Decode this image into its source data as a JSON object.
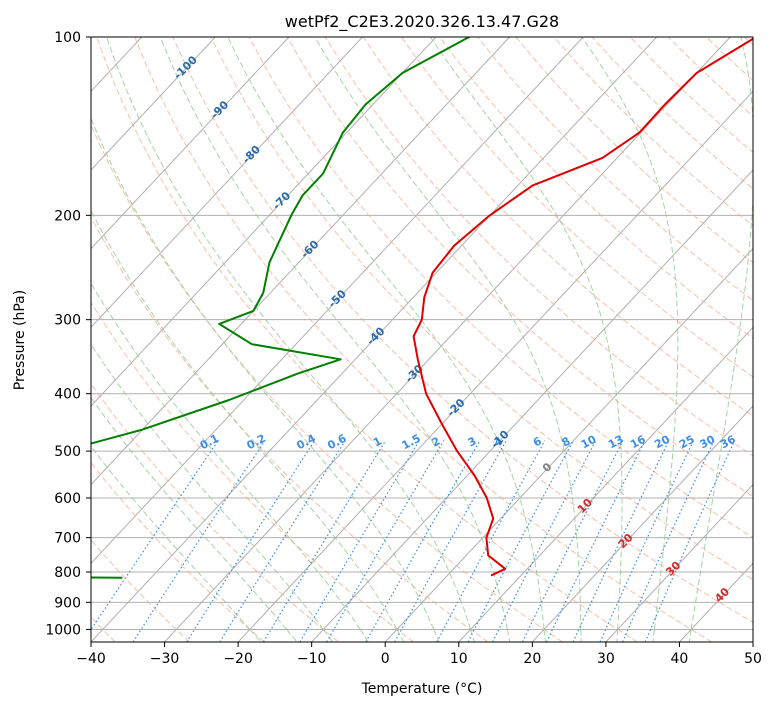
{
  "chart_data": {
    "type": "line",
    "subtype": "skew-t log-p diagram",
    "title": "wetPf2_C2E3.2020.326.13.47.G28",
    "xlabel": "Temperature (°C)",
    "ylabel": "Pressure (hPa)",
    "xlim": [
      -40,
      50
    ],
    "ylim": [
      1050,
      100
    ],
    "y_scale": "log",
    "grid": true,
    "x_ticks": [
      "−40",
      "−30",
      "−20",
      "−10",
      "0",
      "10",
      "20",
      "30",
      "40",
      "50"
    ],
    "x_tick_values": [
      -40,
      -30,
      -20,
      -10,
      0,
      10,
      20,
      30,
      40,
      50
    ],
    "y_ticks": [
      "100",
      "200",
      "300",
      "400",
      "500",
      "600",
      "700",
      "800",
      "900",
      "1000"
    ],
    "y_tick_values": [
      100,
      200,
      300,
      400,
      500,
      600,
      700,
      800,
      900,
      1000
    ],
    "colors": {
      "temperature": "#e00000",
      "dewpoint": "#008000",
      "isotherm_label": "#2a6aa8",
      "mixing_ratio": "#3c8ee6",
      "dry_adiabat": "#f4a582",
      "moist_adiabat": "#90c890",
      "grid": "#b0b0b0"
    },
    "series": [
      {
        "type": "temperature",
        "points": [
          [
            -26.5,
            100
          ],
          [
            -30,
            115
          ],
          [
            -30.3,
            130
          ],
          [
            -30.2,
            145
          ],
          [
            -32,
            160
          ],
          [
            -38,
            178
          ],
          [
            -40,
            200
          ],
          [
            -41,
            225
          ],
          [
            -40.5,
            250
          ],
          [
            -38.5,
            275
          ],
          [
            -36,
            300
          ],
          [
            -35,
            320
          ],
          [
            -31.5,
            350
          ],
          [
            -26,
            400
          ],
          [
            -20,
            450
          ],
          [
            -14.5,
            500
          ],
          [
            -9,
            550
          ],
          [
            -4.5,
            600
          ],
          [
            -1,
            650
          ],
          [
            0.5,
            700
          ],
          [
            3,
            750
          ],
          [
            7,
            790
          ],
          [
            6,
            810
          ]
        ]
      },
      {
        "type": "dewpoint",
        "points": [
          [
            -65.5,
            100
          ],
          [
            -70,
            115
          ],
          [
            -71,
            130
          ],
          [
            -70.5,
            145
          ],
          [
            -68,
            170
          ],
          [
            -68,
            185
          ],
          [
            -67,
            200
          ],
          [
            -64,
            240
          ],
          [
            -61,
            270
          ],
          [
            -60,
            290
          ],
          [
            -63,
            305
          ],
          [
            -56,
            330
          ],
          [
            -42,
            350
          ],
          [
            -46,
            370
          ],
          [
            -52,
            410
          ],
          [
            -60,
            460
          ],
          [
            -70,
            510
          ],
          [
            -75,
            530
          ],
          [
            -72,
            560
          ],
          [
            -62,
            600
          ],
          [
            -65,
            640
          ],
          [
            -90,
            675
          ],
          [
            -67,
            700
          ],
          [
            -63,
            760
          ],
          [
            -68,
            790
          ],
          [
            -90,
            800
          ],
          [
            -63,
            812
          ],
          [
            -60,
            815
          ],
          [
            -44,
            818
          ]
        ]
      }
    ],
    "isotherm_labels": [
      "-100",
      "-90",
      "-80",
      "-70",
      "-60",
      "-50",
      "-40",
      "-30",
      "-20",
      "-10",
      "0",
      "10",
      "20",
      "30",
      "40"
    ],
    "isotherm_label_values": [
      -100,
      -90,
      -80,
      -70,
      -60,
      -50,
      -40,
      -30,
      -20,
      -10,
      0,
      10,
      20,
      30,
      40
    ],
    "mixing_ratio_labels": [
      "0.1",
      "0.2",
      "0.4",
      "0.6",
      "1",
      "1.5",
      "2",
      "3",
      "4",
      "6",
      "8",
      "10",
      "13",
      "16",
      "20",
      "25",
      "30",
      "36"
    ],
    "mixing_ratio_values": [
      0.1,
      0.2,
      0.4,
      0.6,
      1,
      1.5,
      2,
      3,
      4,
      6,
      8,
      10,
      13,
      16,
      20,
      25,
      30,
      36
    ]
  }
}
